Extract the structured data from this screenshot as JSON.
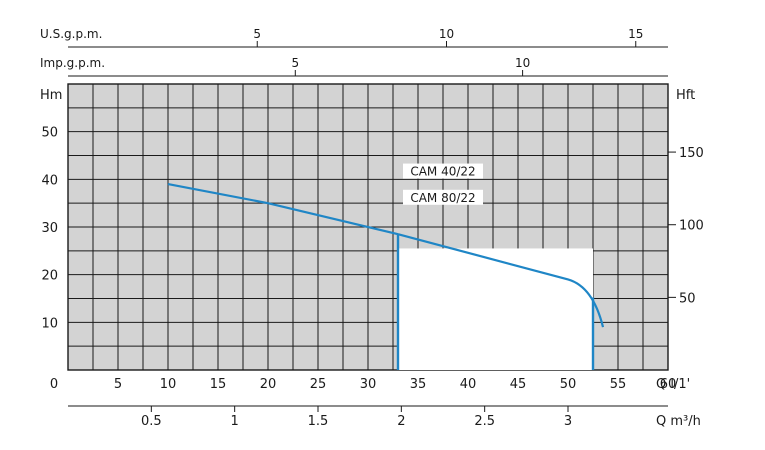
{
  "chart_data": {
    "type": "line",
    "colors": {
      "curve": "#1f86c6",
      "grid": "#1a1a1a",
      "text": "#1a1a1a",
      "shade": "#d3d3d3"
    },
    "grid": true,
    "axes": {
      "q_lmin": {
        "label": "Q l/1'",
        "range": [
          0,
          60
        ],
        "ticks": [
          0,
          5,
          10,
          15,
          20,
          25,
          30,
          35,
          40,
          45,
          50,
          55,
          60
        ]
      },
      "q_m3h": {
        "label": "Q m³/h",
        "ticks": [
          0.5,
          1,
          1.5,
          2,
          2.5,
          3
        ],
        "tick_labels": [
          "0.5",
          "1",
          "1.5",
          "2",
          "2.5",
          "3"
        ]
      },
      "usgpm": {
        "label": "U.S.g.p.m.",
        "ticks": [
          5,
          10,
          15
        ]
      },
      "impgpm": {
        "label": "Imp.g.p.m.",
        "ticks": [
          5,
          10
        ]
      },
      "hm": {
        "label": "Hm",
        "range": [
          0,
          60
        ],
        "ticks": [
          10,
          20,
          30,
          40,
          50
        ]
      },
      "hft": {
        "label": "Hft",
        "ticks": [
          50,
          100,
          150
        ]
      }
    },
    "series": [
      {
        "name": "CAM 40/22",
        "x": [
          10,
          20,
          33
        ],
        "y": [
          39,
          35,
          28.5
        ],
        "shaded_from_x": 33
      },
      {
        "name": "CAM 80/22",
        "x": [
          33,
          40,
          50,
          52.5,
          53.5
        ],
        "y": [
          28.5,
          25,
          19,
          15,
          9
        ],
        "shaded_to_x": 52.5
      }
    ]
  }
}
